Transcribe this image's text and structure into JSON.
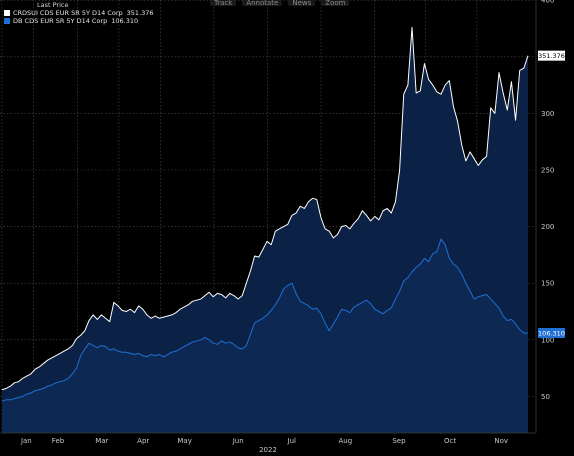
{
  "toolbar": {
    "items": [
      "Track",
      "Annotate",
      "News",
      "Zoom"
    ]
  },
  "legend": {
    "header": "Last Price",
    "entries": [
      {
        "label": "CRDSUI CDS EUR SR 5Y D14 Corp",
        "value": "351.376",
        "color": "#ffffff"
      },
      {
        "label": "DB CDS EUR SR 5Y D14 Corp",
        "value": "106.310",
        "color": "#1f6fd6"
      }
    ]
  },
  "chart_data": {
    "type": "area",
    "x_unit": "trading days (Jan 2022 – Nov 2022)",
    "x_ticks": [
      "Jan",
      "Feb",
      "Mar",
      "Apr",
      "May",
      "Jun",
      "Jul",
      "Aug",
      "Sep",
      "Oct",
      "Nov"
    ],
    "x_label": "2022",
    "y_ticks": [
      50,
      100,
      150,
      200,
      250,
      300,
      350,
      400
    ],
    "ylim": [
      25,
      400
    ],
    "grid": true,
    "series": [
      {
        "name": "CRDSUI CDS EUR SR 5Y D14 Corp",
        "last_label": "351.376",
        "color": "#ffffff",
        "values": [
          56,
          57,
          59,
          62,
          63,
          66,
          68,
          70,
          74,
          76,
          79,
          82,
          84,
          86,
          88,
          90,
          92,
          95,
          101,
          104,
          108,
          117,
          122,
          118,
          122,
          119,
          116,
          133,
          130,
          126,
          125,
          127,
          124,
          130,
          127,
          122,
          119,
          121,
          119,
          120,
          121,
          122,
          124,
          127,
          129,
          131,
          134,
          135,
          136,
          139,
          142,
          138,
          141,
          140,
          137,
          141,
          139,
          136,
          139,
          150,
          161,
          174,
          173,
          180,
          187,
          184,
          196,
          198,
          200,
          202,
          210,
          212,
          218,
          216,
          222,
          225,
          224,
          208,
          198,
          196,
          190,
          193,
          200,
          201,
          198,
          203,
          207,
          214,
          210,
          205,
          209,
          206,
          214,
          216,
          212,
          222,
          250,
          317,
          325,
          376,
          318,
          320,
          344,
          330,
          325,
          319,
          317,
          325,
          329,
          306,
          293,
          272,
          258,
          266,
          260,
          254,
          259,
          262,
          305,
          300,
          336,
          318,
          303,
          328,
          294,
          338,
          340,
          351
        ]
      },
      {
        "name": "DB CDS EUR SR 5Y D14 Corp",
        "last_label": "106.310",
        "color": "#1f6fd6",
        "values": [
          46,
          47,
          47,
          48,
          49,
          50,
          52,
          53,
          55,
          56,
          57,
          59,
          60,
          62,
          63,
          64,
          66,
          70,
          75,
          86,
          92,
          97,
          95,
          93,
          95,
          94,
          91,
          92,
          90,
          89,
          89,
          88,
          87,
          88,
          86,
          85,
          87,
          86,
          87,
          85,
          87,
          89,
          90,
          92,
          94,
          96,
          98,
          99,
          100,
          102,
          100,
          97,
          96,
          99,
          97,
          98,
          96,
          93,
          92,
          95,
          105,
          115,
          117,
          119,
          122,
          126,
          131,
          137,
          145,
          148,
          150,
          141,
          134,
          132,
          130,
          127,
          128,
          123,
          115,
          108,
          114,
          120,
          127,
          126,
          124,
          129,
          131,
          133,
          135,
          132,
          127,
          125,
          123,
          126,
          128,
          136,
          143,
          152,
          155,
          160,
          164,
          167,
          172,
          169,
          176,
          178,
          189,
          184,
          172,
          167,
          164,
          158,
          150,
          143,
          136,
          138,
          139,
          140,
          136,
          132,
          128,
          121,
          117,
          118,
          114,
          109,
          106,
          106
        ]
      }
    ]
  }
}
